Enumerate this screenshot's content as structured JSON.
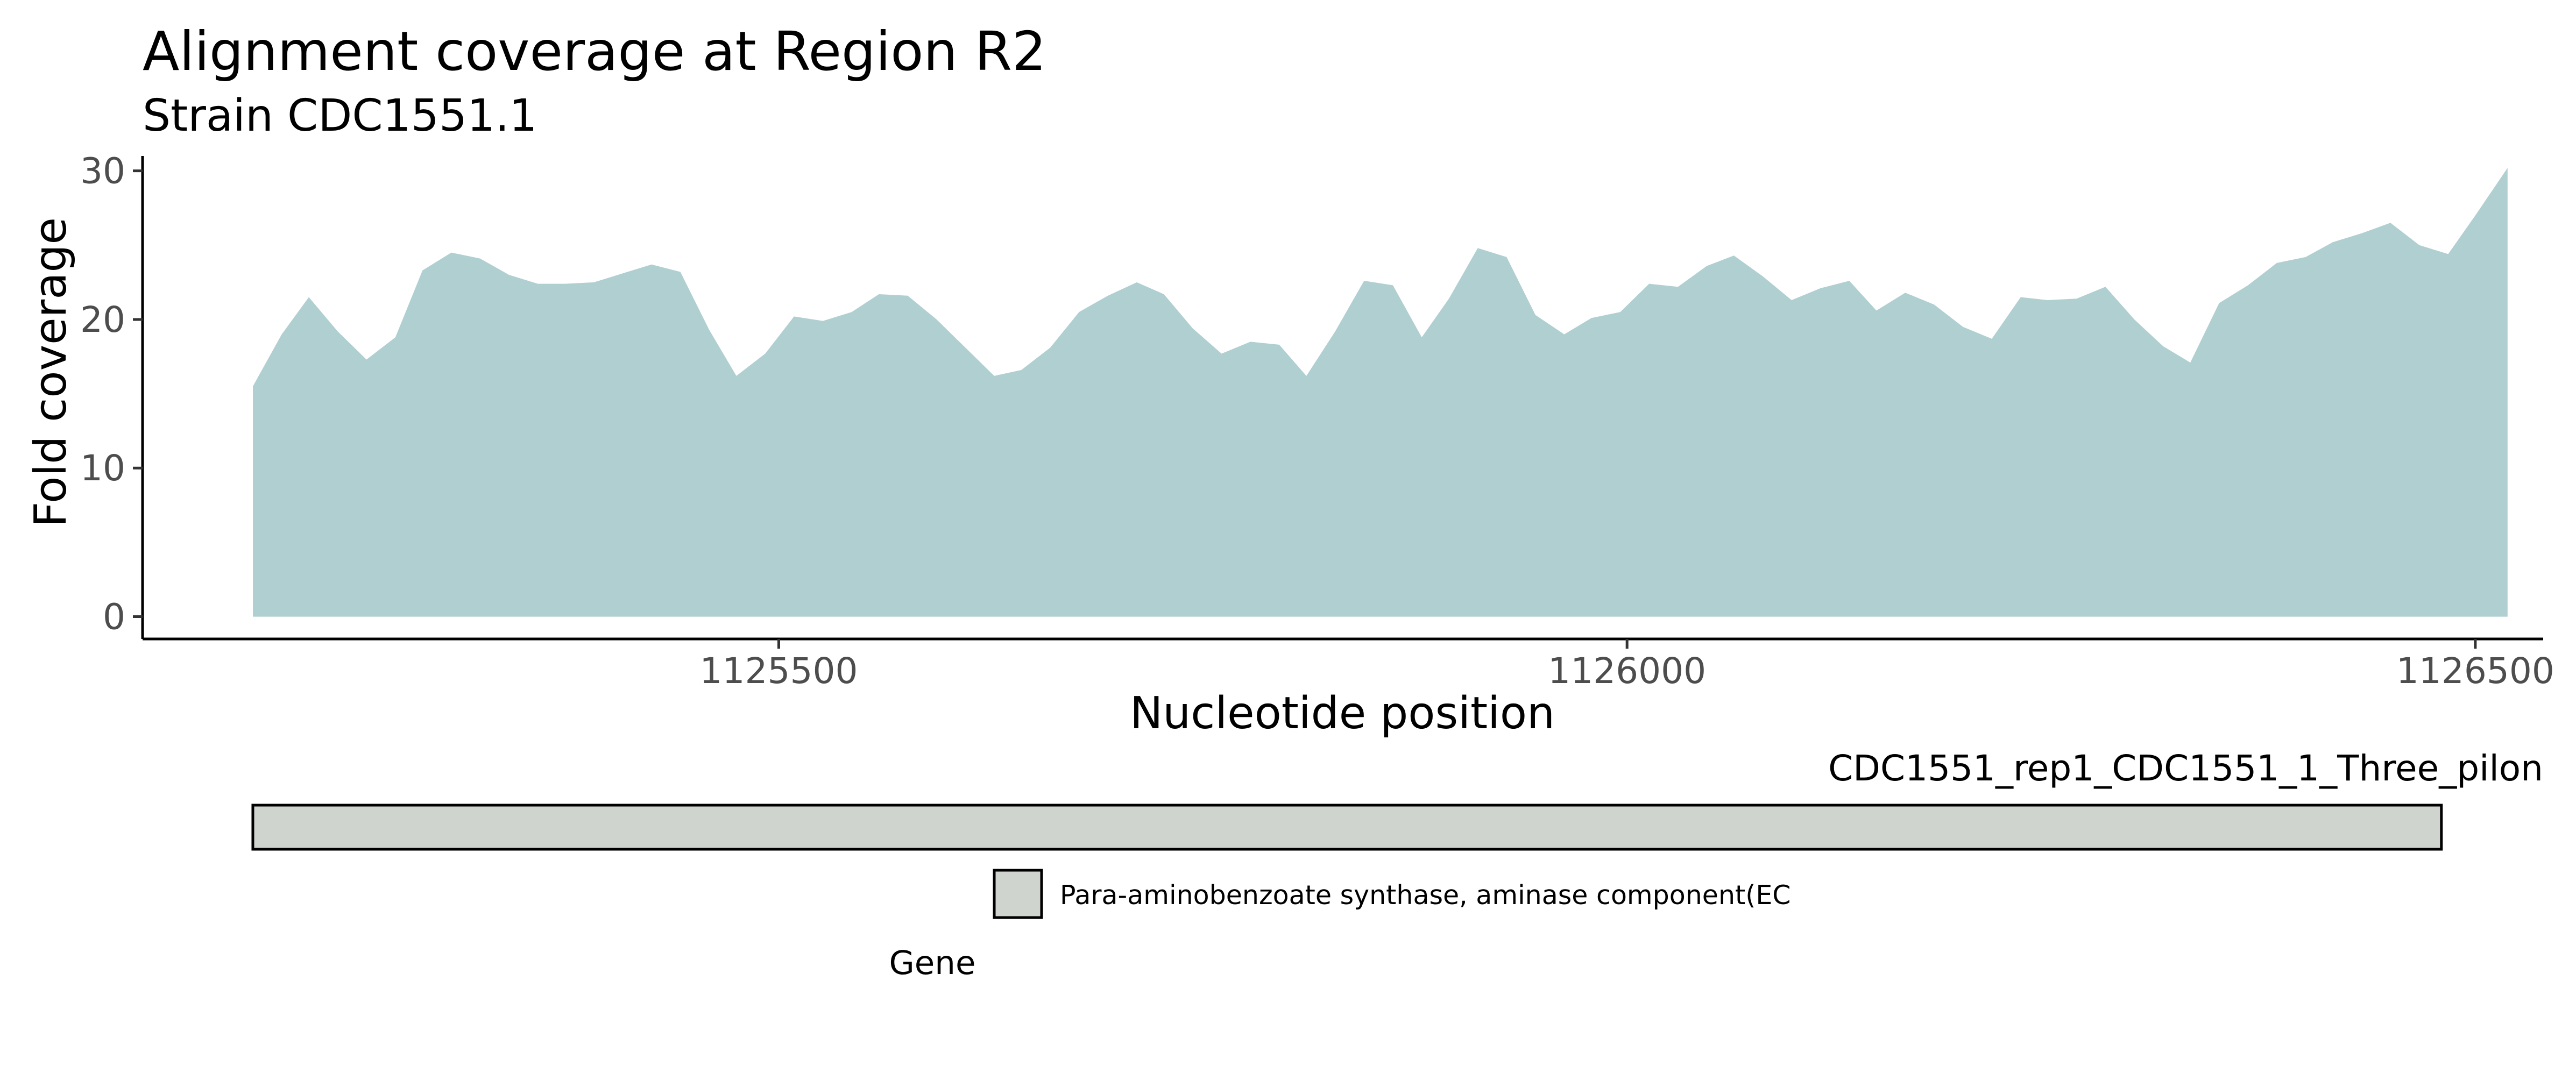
{
  "chart_data": {
    "type": "area",
    "title": "Alignment coverage at Region R2",
    "subtitle": "Strain CDC1551.1",
    "xlabel": "Nucleotide position",
    "ylabel": "Fold coverage",
    "xlim": [
      1125125,
      1126540
    ],
    "ylim": [
      -1.5,
      31
    ],
    "x_ticks": [
      1125500,
      1126000,
      1126500
    ],
    "x_tick_labels": [
      "1125500",
      "1126000",
      "1126500"
    ],
    "y_ticks": [
      0,
      10,
      20,
      30
    ],
    "y_tick_labels": [
      "0",
      "10",
      "20",
      "30"
    ],
    "grid": false,
    "fill_color": "#b0cfd1",
    "series": [
      {
        "x": [
          1125190,
          1125207,
          1125223,
          1125240,
          1125257,
          1125274,
          1125290,
          1125307,
          1125324,
          1125341,
          1125358,
          1125374,
          1125391,
          1125408,
          1125425,
          1125442,
          1125459,
          1125475,
          1125492,
          1125509,
          1125526,
          1125543,
          1125559,
          1125576,
          1125593,
          1125610,
          1125627,
          1125643,
          1125660,
          1125677,
          1125694,
          1125711,
          1125727,
          1125744,
          1125761,
          1125778,
          1125795,
          1125811,
          1125828,
          1125845,
          1125862,
          1125879,
          1125895,
          1125912,
          1125929,
          1125946,
          1125963,
          1125979,
          1125996,
          1126013,
          1126030,
          1126047,
          1126063,
          1126080,
          1126097,
          1126114,
          1126131,
          1126147,
          1126164,
          1126181,
          1126198,
          1126215,
          1126232,
          1126248,
          1126265,
          1126282,
          1126299,
          1126316,
          1126332,
          1126349,
          1126366,
          1126383,
          1126400,
          1126416,
          1126433,
          1126450,
          1126467,
          1126484
        ],
        "values": [
          15.5,
          19.0,
          21.5,
          19.2,
          17.3,
          18.8,
          23.3,
          24.5,
          24.1,
          23.0,
          22.4,
          22.4,
          22.5,
          23.1,
          23.7,
          23.2,
          19.3,
          16.2,
          17.7,
          20.2,
          19.9,
          20.5,
          21.7,
          21.6,
          20.0,
          18.1,
          16.2,
          16.6,
          18.1,
          20.5,
          21.6,
          22.5,
          21.7,
          19.4,
          17.7,
          18.5,
          18.3,
          16.2,
          19.2,
          22.6,
          22.3,
          18.8,
          21.4,
          24.8,
          24.2,
          20.3,
          19.0,
          20.1,
          20.5,
          22.4,
          22.2,
          23.6,
          24.3,
          22.9,
          21.3,
          22.1,
          22.6,
          20.6,
          21.8,
          21.0,
          19.5,
          18.7,
          21.5,
          21.3,
          21.4,
          22.2,
          20.0,
          18.2,
          17.1,
          21.1,
          22.3,
          23.8,
          24.2,
          25.2,
          25.8,
          26.5,
          25.0,
          24.4
        ]
      }
    ],
    "data_tail": {
      "x": [
        1126500,
        1126519
      ],
      "values": [
        27.0,
        30.2
      ]
    },
    "tracks": {
      "contig_label": "CDC1551_rep1_CDC1551_1_Three_pilon",
      "contig_start": 1125190,
      "contig_end": 1126480,
      "contig_color": "#cfd4ce",
      "legend_title": "Gene",
      "legend_item": "Para-aminobenzoate synthase, aminase component(EC",
      "legend_color": "#cfd4ce"
    }
  }
}
